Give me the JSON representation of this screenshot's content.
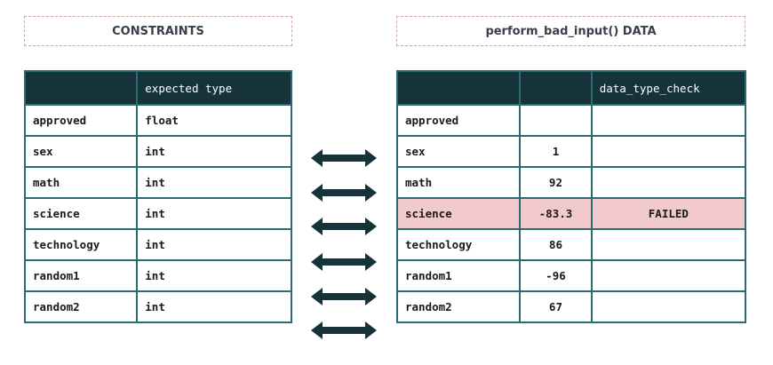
{
  "left_title": "CONSTRAINTS",
  "right_title": "perform_bad_input() DATA",
  "left_table": {
    "header": [
      "",
      "expected type"
    ],
    "rows": [
      {
        "field": "approved",
        "type": "float"
      },
      {
        "field": "sex",
        "type": "int"
      },
      {
        "field": "math",
        "type": "int"
      },
      {
        "field": "science",
        "type": "int"
      },
      {
        "field": "technology",
        "type": "int"
      },
      {
        "field": "random1",
        "type": "int"
      },
      {
        "field": "random2",
        "type": "int"
      }
    ]
  },
  "right_table": {
    "header": [
      "",
      "",
      "data_type_check"
    ],
    "rows": [
      {
        "field": "approved",
        "value": "",
        "check": ""
      },
      {
        "field": "sex",
        "value": "1",
        "check": ""
      },
      {
        "field": "math",
        "value": "92",
        "check": ""
      },
      {
        "field": "science",
        "value": "-83.3",
        "check": "FAILED"
      },
      {
        "field": "technology",
        "value": "86",
        "check": ""
      },
      {
        "field": "random1",
        "value": "-96",
        "check": ""
      },
      {
        "field": "random2",
        "value": "67",
        "check": ""
      }
    ]
  },
  "colors": {
    "header_bg": "#17333a",
    "border": "#2b6b73",
    "failed_bg": "#f2c9cc",
    "arrow": "#17333a"
  }
}
